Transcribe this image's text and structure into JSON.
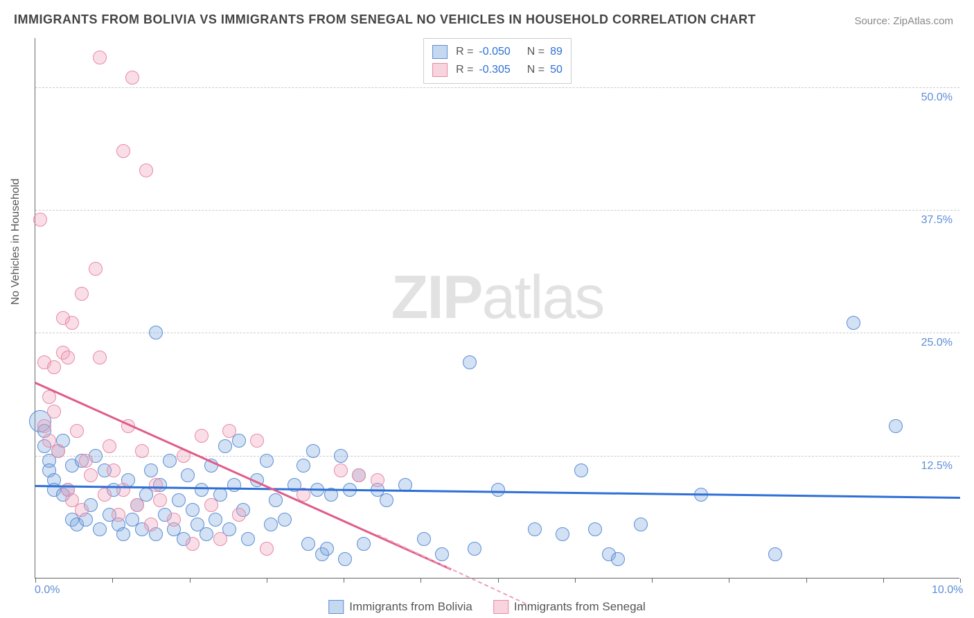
{
  "title": "IMMIGRANTS FROM BOLIVIA VS IMMIGRANTS FROM SENEGAL NO VEHICLES IN HOUSEHOLD CORRELATION CHART",
  "source": "Source: ZipAtlas.com",
  "watermark_bold": "ZIP",
  "watermark_rest": "atlas",
  "chart": {
    "type": "scatter",
    "background_color": "#ffffff",
    "grid_color": "#cccccc",
    "axis_color": "#666666",
    "xlim": [
      0,
      10
    ],
    "ylim": [
      0,
      55
    ],
    "xticks": [
      0,
      10
    ],
    "xtick_labels": [
      "0.0%",
      "10.0%"
    ],
    "yticks": [
      12.5,
      25,
      37.5,
      50
    ],
    "ytick_labels": [
      "12.5%",
      "25.0%",
      "37.5%",
      "50.0%"
    ],
    "ylabel": "No Vehicles in Household",
    "label_fontsize": 16,
    "tick_fontsize": 16,
    "tick_color": "#5b8dd6",
    "marker_radius": 10,
    "marker_radius_large": 14,
    "series": [
      {
        "key": "bolivia",
        "label": "Immigrants from Bolivia",
        "color_fill": "rgba(125,170,222,0.35)",
        "color_stroke": "#5b8dd6",
        "r_value": "-0.050",
        "n_value": "89",
        "trend": {
          "x1": 0.0,
          "y1": 9.5,
          "x2": 10.0,
          "y2": 8.3,
          "color": "#2e6fd6",
          "width": 2.5
        },
        "points": [
          {
            "x": 0.05,
            "y": 16.0,
            "r": 16
          },
          {
            "x": 0.1,
            "y": 13.5
          },
          {
            "x": 0.1,
            "y": 15.0
          },
          {
            "x": 0.15,
            "y": 12.0
          },
          {
            "x": 0.15,
            "y": 11.0
          },
          {
            "x": 0.2,
            "y": 10.0
          },
          {
            "x": 0.2,
            "y": 9.0
          },
          {
            "x": 0.25,
            "y": 13.0
          },
          {
            "x": 0.3,
            "y": 14.0
          },
          {
            "x": 0.3,
            "y": 8.5
          },
          {
            "x": 0.35,
            "y": 9.0
          },
          {
            "x": 0.4,
            "y": 11.5
          },
          {
            "x": 0.4,
            "y": 6.0
          },
          {
            "x": 0.45,
            "y": 5.5
          },
          {
            "x": 0.5,
            "y": 12.0
          },
          {
            "x": 0.55,
            "y": 6.0
          },
          {
            "x": 0.6,
            "y": 7.5
          },
          {
            "x": 0.65,
            "y": 12.5
          },
          {
            "x": 0.7,
            "y": 5.0
          },
          {
            "x": 0.75,
            "y": 11.0
          },
          {
            "x": 0.8,
            "y": 6.5
          },
          {
            "x": 0.85,
            "y": 9.0
          },
          {
            "x": 0.9,
            "y": 5.5
          },
          {
            "x": 0.95,
            "y": 4.5
          },
          {
            "x": 1.0,
            "y": 10.0
          },
          {
            "x": 1.05,
            "y": 6.0
          },
          {
            "x": 1.1,
            "y": 7.5
          },
          {
            "x": 1.15,
            "y": 5.0
          },
          {
            "x": 1.2,
            "y": 8.5
          },
          {
            "x": 1.25,
            "y": 11.0
          },
          {
            "x": 1.3,
            "y": 25.0
          },
          {
            "x": 1.3,
            "y": 4.5
          },
          {
            "x": 1.35,
            "y": 9.5
          },
          {
            "x": 1.4,
            "y": 6.5
          },
          {
            "x": 1.45,
            "y": 12.0
          },
          {
            "x": 1.5,
            "y": 5.0
          },
          {
            "x": 1.55,
            "y": 8.0
          },
          {
            "x": 1.6,
            "y": 4.0
          },
          {
            "x": 1.65,
            "y": 10.5
          },
          {
            "x": 1.7,
            "y": 7.0
          },
          {
            "x": 1.75,
            "y": 5.5
          },
          {
            "x": 1.8,
            "y": 9.0
          },
          {
            "x": 1.85,
            "y": 4.5
          },
          {
            "x": 1.9,
            "y": 11.5
          },
          {
            "x": 1.95,
            "y": 6.0
          },
          {
            "x": 2.0,
            "y": 8.5
          },
          {
            "x": 2.05,
            "y": 13.5
          },
          {
            "x": 2.1,
            "y": 5.0
          },
          {
            "x": 2.15,
            "y": 9.5
          },
          {
            "x": 2.2,
            "y": 14.0
          },
          {
            "x": 2.25,
            "y": 7.0
          },
          {
            "x": 2.3,
            "y": 4.0
          },
          {
            "x": 2.4,
            "y": 10.0
          },
          {
            "x": 2.5,
            "y": 12.0
          },
          {
            "x": 2.55,
            "y": 5.5
          },
          {
            "x": 2.6,
            "y": 8.0
          },
          {
            "x": 2.7,
            "y": 6.0
          },
          {
            "x": 2.8,
            "y": 9.5
          },
          {
            "x": 2.9,
            "y": 11.5
          },
          {
            "x": 2.95,
            "y": 3.5
          },
          {
            "x": 3.0,
            "y": 13.0
          },
          {
            "x": 3.05,
            "y": 9.0
          },
          {
            "x": 3.1,
            "y": 2.5
          },
          {
            "x": 3.15,
            "y": 3.0
          },
          {
            "x": 3.2,
            "y": 8.5
          },
          {
            "x": 3.3,
            "y": 12.5
          },
          {
            "x": 3.35,
            "y": 2.0
          },
          {
            "x": 3.4,
            "y": 9.0
          },
          {
            "x": 3.5,
            "y": 10.5
          },
          {
            "x": 3.55,
            "y": 3.5
          },
          {
            "x": 3.7,
            "y": 9.0
          },
          {
            "x": 3.8,
            "y": 8.0
          },
          {
            "x": 4.0,
            "y": 9.5
          },
          {
            "x": 4.2,
            "y": 4.0
          },
          {
            "x": 4.4,
            "y": 2.5
          },
          {
            "x": 4.7,
            "y": 22.0
          },
          {
            "x": 4.75,
            "y": 3.0
          },
          {
            "x": 5.0,
            "y": 9.0
          },
          {
            "x": 5.4,
            "y": 5.0
          },
          {
            "x": 5.7,
            "y": 4.5
          },
          {
            "x": 5.9,
            "y": 11.0
          },
          {
            "x": 6.05,
            "y": 5.0
          },
          {
            "x": 6.2,
            "y": 2.5
          },
          {
            "x": 6.3,
            "y": 2.0
          },
          {
            "x": 6.55,
            "y": 5.5
          },
          {
            "x": 7.2,
            "y": 8.5
          },
          {
            "x": 8.0,
            "y": 2.5
          },
          {
            "x": 8.85,
            "y": 26.0
          },
          {
            "x": 9.3,
            "y": 15.5
          }
        ]
      },
      {
        "key": "senegal",
        "label": "Immigrants from Senegal",
        "color_fill": "rgba(240,160,185,0.35)",
        "color_stroke": "#e68aa5",
        "r_value": "-0.305",
        "n_value": "50",
        "trend": {
          "x1": 0.0,
          "y1": 20.0,
          "x2": 4.5,
          "y2": 1.0,
          "color": "#e05c8a",
          "width": 2.5
        },
        "trend_dashed": {
          "x1": 3.7,
          "y1": 4.5,
          "x2": 5.3,
          "y2": -2.5
        },
        "points": [
          {
            "x": 0.05,
            "y": 36.5
          },
          {
            "x": 0.1,
            "y": 22.0
          },
          {
            "x": 0.1,
            "y": 15.5
          },
          {
            "x": 0.15,
            "y": 14.0
          },
          {
            "x": 0.15,
            "y": 18.5
          },
          {
            "x": 0.2,
            "y": 21.5
          },
          {
            "x": 0.2,
            "y": 17.0
          },
          {
            "x": 0.25,
            "y": 13.0
          },
          {
            "x": 0.3,
            "y": 23.0
          },
          {
            "x": 0.3,
            "y": 26.5
          },
          {
            "x": 0.35,
            "y": 22.5
          },
          {
            "x": 0.35,
            "y": 9.0
          },
          {
            "x": 0.4,
            "y": 26.0
          },
          {
            "x": 0.4,
            "y": 8.0
          },
          {
            "x": 0.45,
            "y": 15.0
          },
          {
            "x": 0.5,
            "y": 29.0
          },
          {
            "x": 0.5,
            "y": 7.0
          },
          {
            "x": 0.55,
            "y": 12.0
          },
          {
            "x": 0.6,
            "y": 10.5
          },
          {
            "x": 0.65,
            "y": 31.5
          },
          {
            "x": 0.7,
            "y": 22.5
          },
          {
            "x": 0.7,
            "y": 53.0
          },
          {
            "x": 0.75,
            "y": 8.5
          },
          {
            "x": 0.8,
            "y": 13.5
          },
          {
            "x": 0.85,
            "y": 11.0
          },
          {
            "x": 0.9,
            "y": 6.5
          },
          {
            "x": 0.95,
            "y": 43.5
          },
          {
            "x": 0.95,
            "y": 9.0
          },
          {
            "x": 1.0,
            "y": 15.5
          },
          {
            "x": 1.05,
            "y": 51.0
          },
          {
            "x": 1.1,
            "y": 7.5
          },
          {
            "x": 1.15,
            "y": 13.0
          },
          {
            "x": 1.2,
            "y": 41.5
          },
          {
            "x": 1.25,
            "y": 5.5
          },
          {
            "x": 1.3,
            "y": 9.5
          },
          {
            "x": 1.35,
            "y": 8.0
          },
          {
            "x": 1.5,
            "y": 6.0
          },
          {
            "x": 1.6,
            "y": 12.5
          },
          {
            "x": 1.7,
            "y": 3.5
          },
          {
            "x": 1.8,
            "y": 14.5
          },
          {
            "x": 1.9,
            "y": 7.5
          },
          {
            "x": 2.0,
            "y": 4.0
          },
          {
            "x": 2.1,
            "y": 15.0
          },
          {
            "x": 2.2,
            "y": 6.5
          },
          {
            "x": 2.4,
            "y": 14.0
          },
          {
            "x": 2.5,
            "y": 3.0
          },
          {
            "x": 2.9,
            "y": 8.5
          },
          {
            "x": 3.3,
            "y": 11.0
          },
          {
            "x": 3.5,
            "y": 10.5
          },
          {
            "x": 3.7,
            "y": 10.0
          }
        ]
      }
    ],
    "legend_r_label": "R =",
    "legend_n_label": "N ="
  }
}
